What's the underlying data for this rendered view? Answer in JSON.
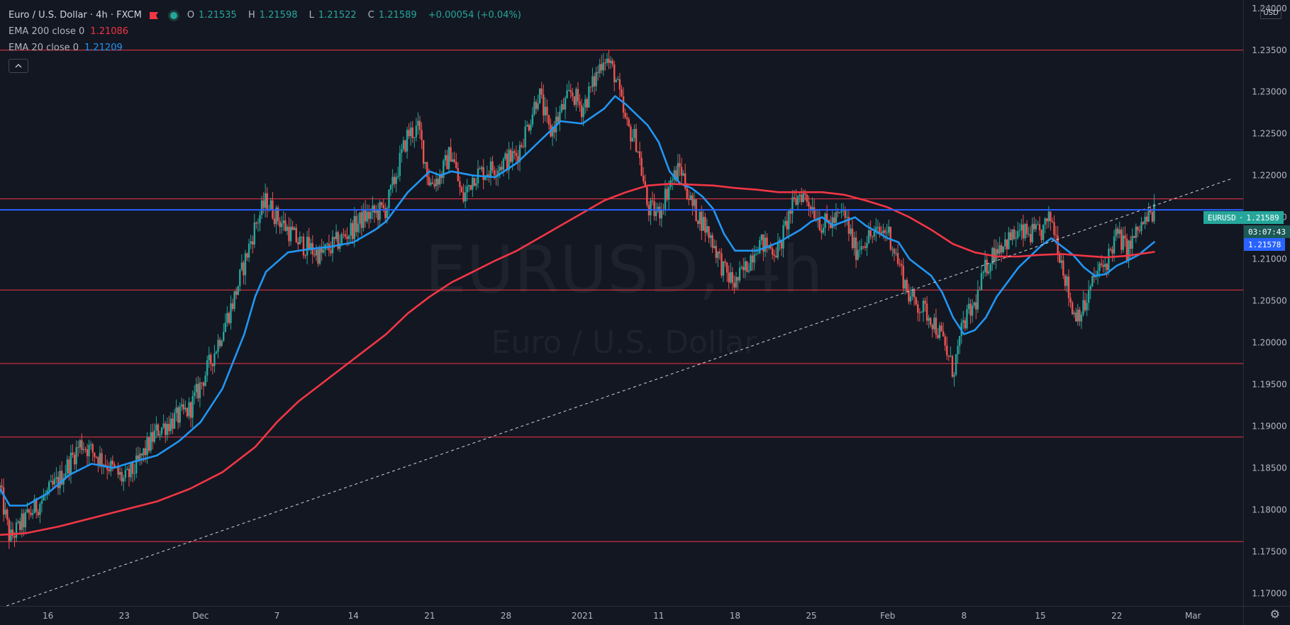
{
  "legend": {
    "title": "Euro / U.S. Dollar · 4h · FXCM",
    "open_label": "O",
    "open": "1.21535",
    "high_label": "H",
    "high": "1.21598",
    "low_label": "L",
    "low": "1.21522",
    "close_label": "C",
    "close": "1.21589",
    "change": "+0.00054 (+0.04%)",
    "ema200_label": "EMA 200 close 0",
    "ema200_value": "1.21086",
    "ema20_label": "EMA 20 close 0",
    "ema20_value": "1.21209"
  },
  "watermark": {
    "symbol": "EURUSD, 4h",
    "name": "Euro / U.S. Dollar"
  },
  "axis": {
    "currency": "USD"
  },
  "tags": {
    "symbol": "EURUSD",
    "price": "1.21589",
    "countdown": "03:07:43",
    "ema_price": "1.21578"
  },
  "colors": {
    "background": "#131722",
    "up": "#26a69a",
    "down": "#ef5350",
    "ema20": "#2196f3",
    "ema200": "#f23645",
    "level": "#f23645",
    "price_line": "#2962ff"
  },
  "chart_data": {
    "type": "candlestick",
    "y_ticks": [
      "1.24000",
      "1.23500",
      "1.23000",
      "1.22500",
      "1.22000",
      "1.21500",
      "1.21000",
      "1.20500",
      "1.20000",
      "1.19500",
      "1.19000",
      "1.18500",
      "1.18000",
      "1.17500",
      "1.17000"
    ],
    "ylim": [
      1.1685,
      1.241
    ],
    "x_ticks": [
      {
        "label": "16",
        "day": 5
      },
      {
        "label": "23",
        "day": 12
      },
      {
        "label": "Dec",
        "day": 19
      },
      {
        "label": "7",
        "day": 26
      },
      {
        "label": "14",
        "day": 33
      },
      {
        "label": "21",
        "day": 40
      },
      {
        "label": "28",
        "day": 47
      },
      {
        "label": "2021",
        "day": 54
      },
      {
        "label": "11",
        "day": 61
      },
      {
        "label": "18",
        "day": 68
      },
      {
        "label": "25",
        "day": 75
      },
      {
        "label": "Feb",
        "day": 82
      },
      {
        "label": "8",
        "day": 89
      },
      {
        "label": "15",
        "day": 96
      },
      {
        "label": "22",
        "day": 103
      },
      {
        "label": "Mar",
        "day": 110
      }
    ],
    "xlim": [
      0.6,
      114.6
    ],
    "horizontal_levels": [
      1.235,
      1.2172,
      1.2063,
      1.1975,
      1.1887,
      1.1762
    ],
    "current_price": 1.21589,
    "trendline": [
      {
        "day": 1.2,
        "price": 1.1685
      },
      {
        "day": 113.5,
        "price": 1.2196
      }
    ],
    "price_path": [
      [
        0.6,
        1.1825
      ],
      [
        1.5,
        1.1765
      ],
      [
        3,
        1.179
      ],
      [
        6,
        1.1835
      ],
      [
        8,
        1.188
      ],
      [
        10,
        1.186
      ],
      [
        12,
        1.1835
      ],
      [
        13,
        1.185
      ],
      [
        15,
        1.1895
      ],
      [
        18,
        1.192
      ],
      [
        20,
        1.198
      ],
      [
        22,
        1.205
      ],
      [
        24,
        1.214
      ],
      [
        25,
        1.217
      ],
      [
        26,
        1.215
      ],
      [
        28,
        1.212
      ],
      [
        30,
        1.2105
      ],
      [
        32,
        1.2125
      ],
      [
        34,
        1.215
      ],
      [
        36,
        1.216
      ],
      [
        37,
        1.2205
      ],
      [
        38,
        1.225
      ],
      [
        39,
        1.2255
      ],
      [
        40,
        1.219
      ],
      [
        41,
        1.22
      ],
      [
        42,
        1.223
      ],
      [
        43,
        1.217
      ],
      [
        44,
        1.22
      ],
      [
        46,
        1.221
      ],
      [
        48,
        1.2225
      ],
      [
        49,
        1.226
      ],
      [
        50,
        1.23
      ],
      [
        51,
        1.225
      ],
      [
        52,
        1.2275
      ],
      [
        53,
        1.23
      ],
      [
        54,
        1.228
      ],
      [
        55,
        1.231
      ],
      [
        56,
        1.2345
      ],
      [
        57,
        1.232
      ],
      [
        58,
        1.226
      ],
      [
        59,
        1.224
      ],
      [
        60,
        1.216
      ],
      [
        61,
        1.2155
      ],
      [
        62,
        1.219
      ],
      [
        63,
        1.221
      ],
      [
        64,
        1.2165
      ],
      [
        65,
        1.2145
      ],
      [
        66,
        1.212
      ],
      [
        67,
        1.2085
      ],
      [
        68,
        1.207
      ],
      [
        69,
        1.209
      ],
      [
        70,
        1.212
      ],
      [
        72,
        1.211
      ],
      [
        73,
        1.2155
      ],
      [
        74,
        1.218
      ],
      [
        75,
        1.2165
      ],
      [
        76,
        1.214
      ],
      [
        77,
        1.2145
      ],
      [
        78,
        1.2155
      ],
      [
        79,
        1.211
      ],
      [
        80,
        1.2125
      ],
      [
        82,
        1.2135
      ],
      [
        83,
        1.2095
      ],
      [
        84,
        1.2055
      ],
      [
        86,
        1.203
      ],
      [
        87,
        1.2005
      ],
      [
        88,
        1.1965
      ],
      [
        89,
        1.2025
      ],
      [
        90,
        1.2045
      ],
      [
        91,
        1.209
      ],
      [
        92,
        1.2115
      ],
      [
        94,
        1.213
      ],
      [
        96,
        1.213
      ],
      [
        97,
        1.215
      ],
      [
        98,
        1.2095
      ],
      [
        99,
        1.2035
      ],
      [
        100,
        1.204
      ],
      [
        101,
        1.208
      ],
      [
        102,
        1.2095
      ],
      [
        103,
        1.213
      ],
      [
        104,
        1.211
      ],
      [
        105,
        1.2135
      ],
      [
        106.5,
        1.21589
      ]
    ],
    "series": [
      {
        "name": "EMA 20 close 0",
        "points": [
          [
            0.6,
            1.1825
          ],
          [
            1.5,
            1.1805
          ],
          [
            3,
            1.1805
          ],
          [
            5,
            1.182
          ],
          [
            7,
            1.1842
          ],
          [
            9,
            1.1855
          ],
          [
            11,
            1.185
          ],
          [
            13,
            1.1858
          ],
          [
            15,
            1.1865
          ],
          [
            17,
            1.1882
          ],
          [
            19,
            1.1905
          ],
          [
            21,
            1.1945
          ],
          [
            23,
            1.201
          ],
          [
            24,
            1.2055
          ],
          [
            25,
            1.2085
          ],
          [
            27,
            1.2108
          ],
          [
            29,
            1.2112
          ],
          [
            31,
            1.2115
          ],
          [
            33,
            1.212
          ],
          [
            35,
            1.2135
          ],
          [
            36,
            1.2145
          ],
          [
            38,
            1.218
          ],
          [
            40,
            1.2205
          ],
          [
            41,
            1.22
          ],
          [
            42,
            1.2205
          ],
          [
            44,
            1.22
          ],
          [
            46,
            1.2198
          ],
          [
            48,
            1.2215
          ],
          [
            50,
            1.224
          ],
          [
            52,
            1.2265
          ],
          [
            54,
            1.2262
          ],
          [
            56,
            1.228
          ],
          [
            57,
            1.2295
          ],
          [
            58,
            1.2285
          ],
          [
            60,
            1.226
          ],
          [
            61,
            1.224
          ],
          [
            62,
            1.2205
          ],
          [
            63,
            1.219
          ],
          [
            64,
            1.2185
          ],
          [
            65,
            1.2175
          ],
          [
            66,
            1.216
          ],
          [
            67,
            1.213
          ],
          [
            68,
            1.211
          ],
          [
            70,
            1.211
          ],
          [
            72,
            1.212
          ],
          [
            74,
            1.2135
          ],
          [
            75,
            1.2145
          ],
          [
            76,
            1.215
          ],
          [
            77,
            1.214
          ],
          [
            78,
            1.2145
          ],
          [
            79,
            1.215
          ],
          [
            80,
            1.214
          ],
          [
            82,
            1.2125
          ],
          [
            83,
            1.212
          ],
          [
            84,
            1.21
          ],
          [
            86,
            1.208
          ],
          [
            87,
            1.206
          ],
          [
            88,
            1.203
          ],
          [
            89,
            1.201
          ],
          [
            90,
            1.2015
          ],
          [
            91,
            1.203
          ],
          [
            92,
            1.2055
          ],
          [
            94,
            1.209
          ],
          [
            96,
            1.2115
          ],
          [
            97,
            1.2125
          ],
          [
            98,
            1.2115
          ],
          [
            99,
            1.2105
          ],
          [
            100,
            1.209
          ],
          [
            101,
            1.208
          ],
          [
            102,
            1.2082
          ],
          [
            103,
            1.2092
          ],
          [
            104,
            1.2098
          ],
          [
            105,
            1.2105
          ],
          [
            106.5,
            1.21209
          ]
        ]
      },
      {
        "name": "EMA 200 close 0",
        "points": [
          [
            0.6,
            1.177
          ],
          [
            3,
            1.1772
          ],
          [
            6,
            1.178
          ],
          [
            9,
            1.179
          ],
          [
            12,
            1.18
          ],
          [
            15,
            1.181
          ],
          [
            18,
            1.1825
          ],
          [
            21,
            1.1845
          ],
          [
            24,
            1.1875
          ],
          [
            26,
            1.1905
          ],
          [
            28,
            1.193
          ],
          [
            30,
            1.195
          ],
          [
            32,
            1.197
          ],
          [
            34,
            1.199
          ],
          [
            36,
            1.201
          ],
          [
            38,
            1.2035
          ],
          [
            40,
            1.2055
          ],
          [
            42,
            1.2072
          ],
          [
            44,
            1.2085
          ],
          [
            46,
            1.2098
          ],
          [
            48,
            1.211
          ],
          [
            50,
            1.2125
          ],
          [
            52,
            1.214
          ],
          [
            54,
            1.2155
          ],
          [
            56,
            1.217
          ],
          [
            58,
            1.218
          ],
          [
            60,
            1.2188
          ],
          [
            62,
            1.219
          ],
          [
            64,
            1.2189
          ],
          [
            66,
            1.2188
          ],
          [
            68,
            1.2185
          ],
          [
            70,
            1.2183
          ],
          [
            72,
            1.218
          ],
          [
            74,
            1.218
          ],
          [
            76,
            1.218
          ],
          [
            78,
            1.2177
          ],
          [
            80,
            1.217
          ],
          [
            82,
            1.2162
          ],
          [
            84,
            1.215
          ],
          [
            86,
            1.2135
          ],
          [
            88,
            1.2118
          ],
          [
            90,
            1.2108
          ],
          [
            92,
            1.2103
          ],
          [
            94,
            1.2103
          ],
          [
            96,
            1.2105
          ],
          [
            98,
            1.2106
          ],
          [
            100,
            1.2104
          ],
          [
            102,
            1.2102
          ],
          [
            104,
            1.2104
          ],
          [
            106.5,
            1.21086
          ]
        ]
      }
    ]
  }
}
